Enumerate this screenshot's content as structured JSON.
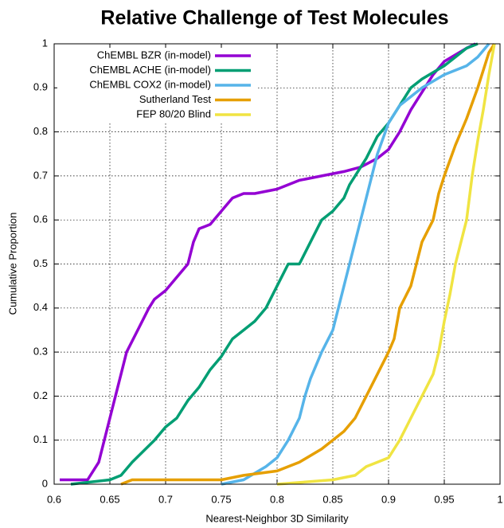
{
  "chart_data": {
    "type": "line",
    "title": "Relative Challenge of Test Molecules",
    "xlabel": "Nearest-Neighbor 3D Similarity",
    "ylabel": "Cumulative Proportion",
    "xlim": [
      0.6,
      1
    ],
    "ylim": [
      0,
      1
    ],
    "xticks": [
      0.6,
      0.65,
      0.7,
      0.75,
      0.8,
      0.85,
      0.9,
      0.95,
      1
    ],
    "yticks": [
      0,
      0.1,
      0.2,
      0.3,
      0.4,
      0.5,
      0.6,
      0.7,
      0.8,
      0.9,
      1
    ],
    "grid": true,
    "legend": "upper left",
    "series": [
      {
        "name": "ChEMBL BZR (in-model)",
        "color": "#9400d3",
        "x": [
          0.605,
          0.63,
          0.64,
          0.645,
          0.65,
          0.655,
          0.66,
          0.665,
          0.675,
          0.685,
          0.69,
          0.7,
          0.71,
          0.72,
          0.725,
          0.73,
          0.74,
          0.75,
          0.76,
          0.77,
          0.78,
          0.8,
          0.82,
          0.84,
          0.86,
          0.875,
          0.89,
          0.9,
          0.91,
          0.92,
          0.93,
          0.94,
          0.95,
          0.97,
          0.978
        ],
        "values": [
          0.01,
          0.01,
          0.05,
          0.1,
          0.15,
          0.2,
          0.25,
          0.3,
          0.35,
          0.4,
          0.42,
          0.44,
          0.47,
          0.5,
          0.55,
          0.58,
          0.59,
          0.62,
          0.65,
          0.66,
          0.66,
          0.67,
          0.69,
          0.7,
          0.71,
          0.72,
          0.74,
          0.76,
          0.8,
          0.85,
          0.89,
          0.93,
          0.96,
          0.99,
          1
        ]
      },
      {
        "name": "ChEMBL ACHE (in-model)",
        "color": "#009e73",
        "x": [
          0.615,
          0.65,
          0.66,
          0.67,
          0.69,
          0.7,
          0.71,
          0.72,
          0.73,
          0.74,
          0.75,
          0.76,
          0.77,
          0.78,
          0.79,
          0.8,
          0.81,
          0.82,
          0.83,
          0.84,
          0.85,
          0.86,
          0.865,
          0.87,
          0.88,
          0.89,
          0.9,
          0.91,
          0.92,
          0.93,
          0.95,
          0.96,
          0.97,
          0.98
        ],
        "values": [
          0,
          0.01,
          0.02,
          0.05,
          0.1,
          0.13,
          0.15,
          0.19,
          0.22,
          0.26,
          0.29,
          0.33,
          0.35,
          0.37,
          0.4,
          0.45,
          0.5,
          0.5,
          0.55,
          0.6,
          0.62,
          0.65,
          0.68,
          0.7,
          0.74,
          0.79,
          0.82,
          0.86,
          0.9,
          0.92,
          0.95,
          0.97,
          0.99,
          1
        ]
      },
      {
        "name": "ChEMBL COX2 (in-model)",
        "color": "#56b4e9",
        "x": [
          0.75,
          0.77,
          0.79,
          0.8,
          0.81,
          0.82,
          0.825,
          0.83,
          0.84,
          0.85,
          0.855,
          0.86,
          0.865,
          0.87,
          0.875,
          0.88,
          0.885,
          0.89,
          0.9,
          0.91,
          0.92,
          0.93,
          0.95,
          0.97,
          0.98,
          0.99
        ],
        "values": [
          0,
          0.01,
          0.04,
          0.06,
          0.1,
          0.15,
          0.2,
          0.24,
          0.3,
          0.35,
          0.4,
          0.45,
          0.5,
          0.55,
          0.6,
          0.65,
          0.7,
          0.75,
          0.82,
          0.86,
          0.88,
          0.9,
          0.93,
          0.95,
          0.97,
          1
        ]
      },
      {
        "name": "Sutherland Test",
        "color": "#e69f00",
        "x": [
          0.66,
          0.67,
          0.75,
          0.77,
          0.8,
          0.82,
          0.84,
          0.86,
          0.87,
          0.88,
          0.89,
          0.9,
          0.905,
          0.91,
          0.92,
          0.925,
          0.93,
          0.94,
          0.945,
          0.95,
          0.96,
          0.97,
          0.98,
          0.99,
          0.995
        ],
        "values": [
          0,
          0.01,
          0.01,
          0.02,
          0.03,
          0.05,
          0.08,
          0.12,
          0.15,
          0.2,
          0.25,
          0.3,
          0.33,
          0.4,
          0.45,
          0.5,
          0.55,
          0.6,
          0.66,
          0.7,
          0.77,
          0.83,
          0.9,
          0.98,
          1
        ]
      },
      {
        "name": "FEP 80/20 Blind",
        "color": "#f0e442",
        "x": [
          0.8,
          0.85,
          0.87,
          0.88,
          0.89,
          0.9,
          0.91,
          0.92,
          0.93,
          0.94,
          0.945,
          0.95,
          0.955,
          0.96,
          0.965,
          0.97,
          0.975,
          0.98,
          0.985,
          0.99,
          0.995
        ],
        "values": [
          0,
          0.01,
          0.02,
          0.04,
          0.05,
          0.06,
          0.1,
          0.15,
          0.2,
          0.25,
          0.3,
          0.37,
          0.43,
          0.5,
          0.55,
          0.6,
          0.7,
          0.78,
          0.85,
          0.93,
          1
        ]
      }
    ]
  }
}
